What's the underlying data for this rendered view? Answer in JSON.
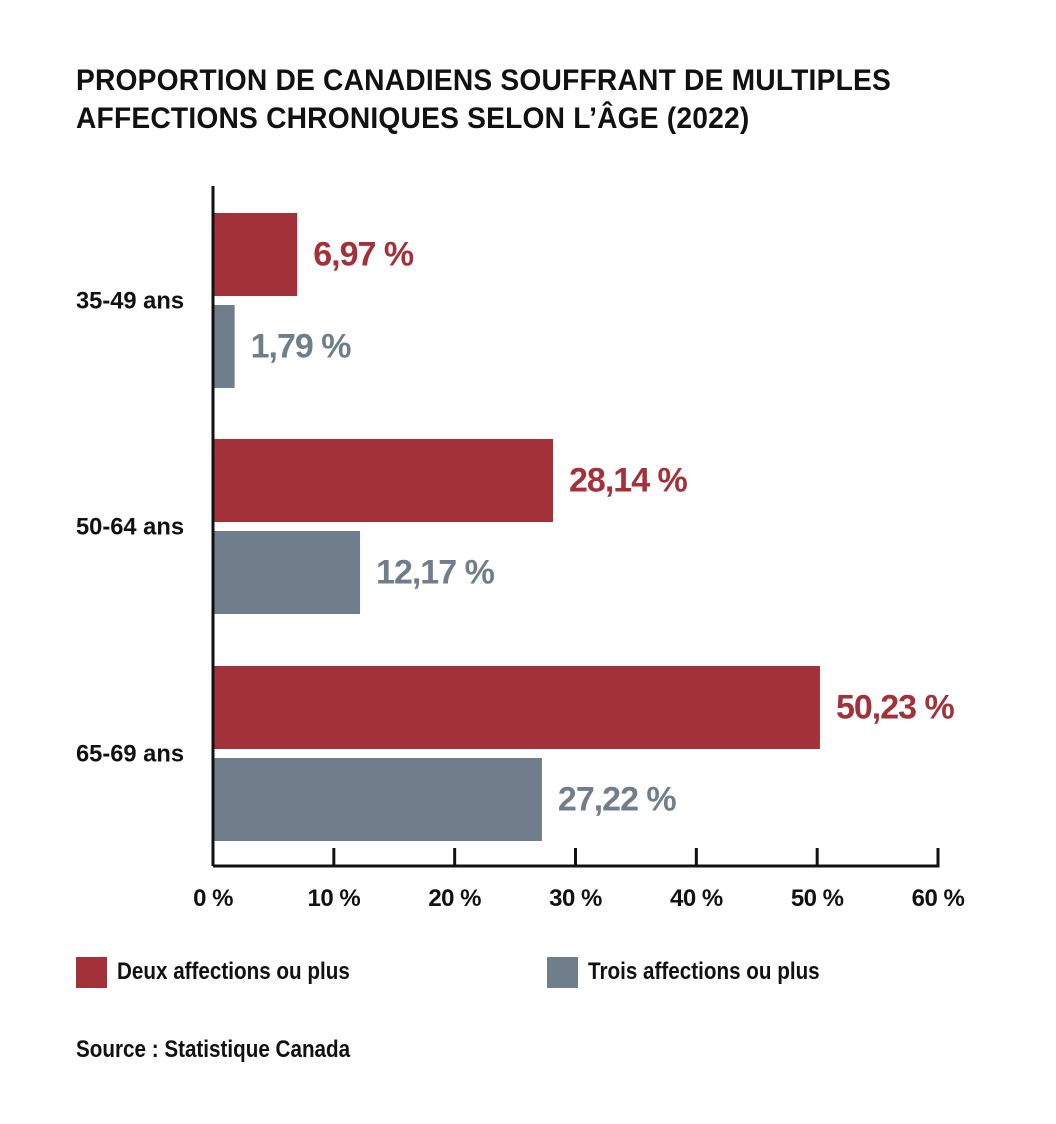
{
  "title_lines": [
    "PROPORTION DE CANADIENS SOUFFRANT DE MULTIPLES",
    "AFFECTIONS CHRONIQUES SELON L’ÂGE (2022)"
  ],
  "source": "Source : Statistique Canada",
  "colors": {
    "two_plus": "#A3313A",
    "three_plus": "#6F7E8A",
    "axis": "#111111"
  },
  "chart_data": {
    "type": "bar",
    "orientation": "horizontal",
    "categories": [
      "35-49 ans",
      "50-64 ans",
      "65-69 ans"
    ],
    "series": [
      {
        "name": "Deux affections ou plus",
        "values": [
          6.97,
          28.14,
          50.23
        ],
        "labels": [
          "6,97 %",
          "28,14 %",
          "50,23 %"
        ]
      },
      {
        "name": "Trois affections ou plus",
        "values": [
          1.79,
          12.17,
          27.22
        ],
        "labels": [
          "1,79 %",
          "12,17 %",
          "27,22 %"
        ]
      }
    ],
    "xlim": [
      0,
      60
    ],
    "xticks": [
      0,
      10,
      20,
      30,
      40,
      50,
      60
    ],
    "xtick_labels": [
      "0 %",
      "10 %",
      "20 %",
      "30 %",
      "40 %",
      "50 %",
      "60 %"
    ],
    "grid": false,
    "legend_position": "bottom"
  }
}
